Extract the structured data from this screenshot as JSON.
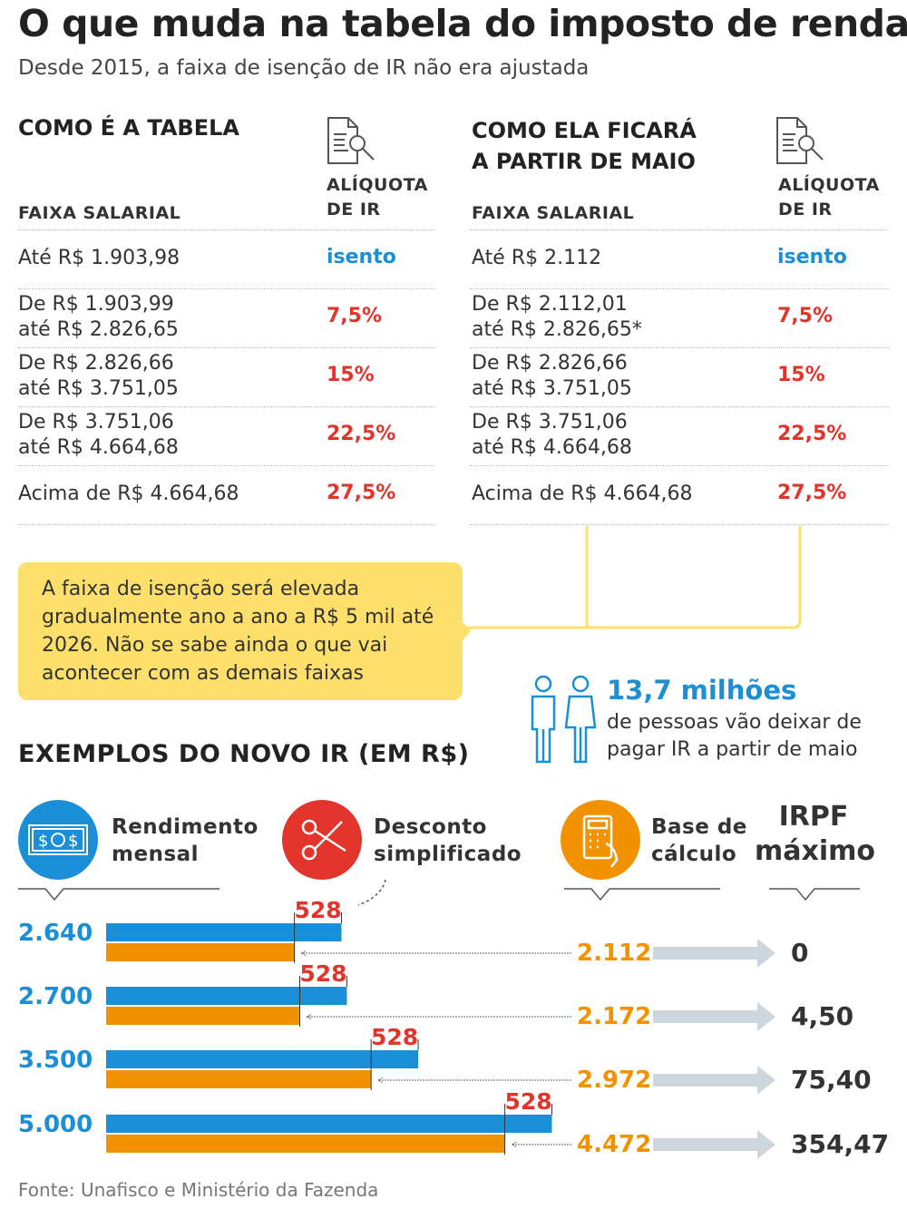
{
  "title": "O que muda na tabela do imposto de renda",
  "subtitle": "Desde 2015, a faixa de isenção de IR não era ajustada",
  "table_current": {
    "heading": "COMO É A TABELA",
    "col1": "FAIXA SALARIAL",
    "col2_line1": "ALÍQUOTA",
    "col2_line2": "DE IR",
    "rows": [
      {
        "l1": "Até R$ 1.903,98",
        "l2": "",
        "rate": "isento"
      },
      {
        "l1": "De R$ 1.903,99",
        "l2": "até R$ 2.826,65",
        "rate": "7,5%"
      },
      {
        "l1": "De R$ 2.826,66",
        "l2": "até R$ 3.751,05",
        "rate": "15%"
      },
      {
        "l1": "De R$ 3.751,06",
        "l2": "até R$ 4.664,68",
        "rate": "22,5%"
      },
      {
        "l1": "Acima de R$ 4.664,68",
        "l2": "",
        "rate": "27,5%"
      }
    ]
  },
  "table_new": {
    "heading_line1": "COMO ELA FICARÁ",
    "heading_line2": "A PARTIR DE MAIO",
    "col1": "FAIXA SALARIAL",
    "col2_line1": "ALÍQUOTA",
    "col2_line2": "DE IR",
    "rows": [
      {
        "l1": "Até R$ 2.112",
        "l2": "",
        "rate": "isento"
      },
      {
        "l1": "De R$ 2.112,01",
        "l2": "até R$ 2.826,65*",
        "rate": "7,5%"
      },
      {
        "l1": "De R$ 2.826,66",
        "l2": "até R$ 3.751,05",
        "rate": "15%"
      },
      {
        "l1": "De R$ 3.751,06",
        "l2": "até R$ 4.664,68",
        "rate": "22,5%"
      },
      {
        "l1": "Acima de R$ 4.664,68",
        "l2": "",
        "rate": "27,5%"
      }
    ]
  },
  "note": "A faixa de isenção será elevada gradualmente ano a ano a R$ 5 mil até 2026. Não se sabe ainda o que vai acontecer com as demais faixas",
  "people": {
    "value": "13,7 milhões",
    "text_line1": "de pessoas vão deixar de",
    "text_line2": "pagar IR a partir de maio",
    "icon": "people-icon"
  },
  "examples_heading": "EXEMPLOS DO NOVO IR (EM R$)",
  "legend": {
    "income_l1": "Rendimento",
    "income_l2": "mensal",
    "discount_l1": "Desconto",
    "discount_l2": "simplificado",
    "base_l1": "Base de",
    "base_l2": "cálculo",
    "irpf_l1": "IRPF",
    "irpf_l2": "máximo"
  },
  "colors": {
    "blue": "#1a8fd8",
    "orange": "#f39200",
    "red": "#e2342b",
    "yellow": "#fddf6b",
    "gray_arrow": "#cdd6dc"
  },
  "chart_data": {
    "type": "bar",
    "orientation": "horizontal",
    "categories": [
      "2.640",
      "2.700",
      "3.500",
      "5.000"
    ],
    "series": [
      {
        "name": "Rendimento mensal",
        "values": [
          2640,
          2700,
          3500,
          5000
        ]
      },
      {
        "name": "Base de cálculo",
        "values": [
          2112,
          2172,
          2972,
          4472
        ]
      }
    ],
    "discount": [
      528,
      528,
      528,
      528
    ],
    "discount_labels": [
      "528",
      "528",
      "528",
      "528"
    ],
    "base_labels": [
      "2.112",
      "2.172",
      "2.972",
      "4.472"
    ],
    "irpf_labels": [
      "0",
      "4,50",
      "75,40",
      "354,47"
    ],
    "irpf": [
      0,
      4.5,
      75.4,
      354.47
    ]
  },
  "source": "Fonte: Unafisco e Ministério da Fazenda"
}
